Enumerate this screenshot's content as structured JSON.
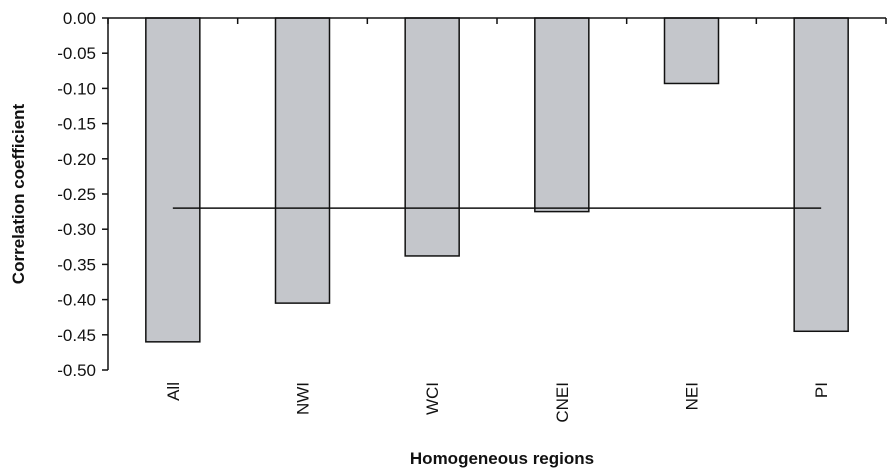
{
  "chart_data": {
    "type": "bar",
    "categories": [
      "All",
      "NWI",
      "WCI",
      "CNEI",
      "NEI",
      "PI"
    ],
    "values": [
      -0.46,
      -0.405,
      -0.338,
      -0.275,
      -0.093,
      -0.445
    ],
    "reference_line": -0.27,
    "xlabel": "Homogeneous regions",
    "ylabel": "Correlation coefficient",
    "ylim": [
      -0.5,
      0.0
    ],
    "yticks": [
      "0.00",
      "-0.05",
      "-0.10",
      "-0.15",
      "-0.20",
      "-0.25",
      "-0.30",
      "-0.35",
      "-0.40",
      "-0.45",
      "-0.50"
    ],
    "grid": false,
    "legend": "none",
    "bar_color": "#c4c6cb",
    "bar_edge_color": "#111111"
  }
}
